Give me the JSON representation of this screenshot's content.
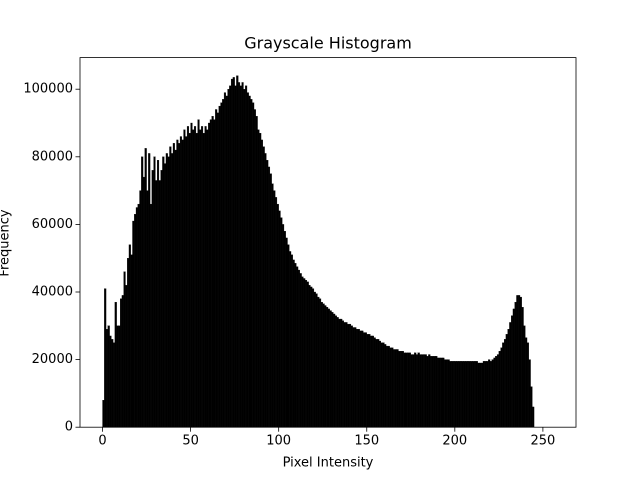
{
  "chart_data": {
    "type": "histogram",
    "title": "Grayscale Histogram",
    "x_label": "Pixel Intensity",
    "y_label": "Frequency",
    "color": "#000000",
    "bins": [
      0,
      1,
      2,
      3,
      4,
      5,
      6,
      7,
      8,
      9,
      10,
      11,
      12,
      13,
      14,
      15,
      16,
      17,
      18,
      19,
      20,
      21,
      22,
      23,
      24,
      25,
      26,
      27,
      28,
      29,
      30,
      31,
      32,
      33,
      34,
      35,
      36,
      37,
      38,
      39,
      40,
      41,
      42,
      43,
      44,
      45,
      46,
      47,
      48,
      49,
      50,
      51,
      52,
      53,
      54,
      55,
      56,
      57,
      58,
      59,
      60,
      61,
      62,
      63,
      64,
      65,
      66,
      67,
      68,
      69,
      70,
      71,
      72,
      73,
      74,
      75,
      76,
      77,
      78,
      79,
      80,
      81,
      82,
      83,
      84,
      85,
      86,
      87,
      88,
      89,
      90,
      91,
      92,
      93,
      94,
      95,
      96,
      97,
      98,
      99,
      100,
      101,
      102,
      103,
      104,
      105,
      106,
      107,
      108,
      109,
      110,
      111,
      112,
      113,
      114,
      115,
      116,
      117,
      118,
      119,
      120,
      121,
      122,
      123,
      124,
      125,
      126,
      127,
      128,
      129,
      130,
      131,
      132,
      133,
      134,
      135,
      136,
      137,
      138,
      139,
      140,
      141,
      142,
      143,
      144,
      145,
      146,
      147,
      148,
      149,
      150,
      151,
      152,
      153,
      154,
      155,
      156,
      157,
      158,
      159,
      160,
      161,
      162,
      163,
      164,
      165,
      166,
      167,
      168,
      169,
      170,
      171,
      172,
      173,
      174,
      175,
      176,
      177,
      178,
      179,
      180,
      181,
      182,
      183,
      184,
      185,
      186,
      187,
      188,
      189,
      190,
      191,
      192,
      193,
      194,
      195,
      196,
      197,
      198,
      199,
      200,
      201,
      202,
      203,
      204,
      205,
      206,
      207,
      208,
      209,
      210,
      211,
      212,
      213,
      214,
      215,
      216,
      217,
      218,
      219,
      220,
      221,
      222,
      223,
      224,
      225,
      226,
      227,
      228,
      229,
      230,
      231,
      232,
      233,
      234,
      235,
      236,
      237,
      238,
      239,
      240,
      241,
      242,
      243,
      244,
      245,
      246,
      247,
      248,
      249,
      250,
      251,
      252,
      253,
      254,
      255,
      256
    ],
    "values": [
      8000,
      41000,
      29000,
      30000,
      27000,
      26000,
      25000,
      37000,
      30000,
      30000,
      38000,
      39000,
      46000,
      42000,
      50000,
      54000,
      51000,
      61000,
      63000,
      65000,
      66000,
      70000,
      80000,
      74000,
      82500,
      70000,
      81000,
      66000,
      76000,
      80000,
      73000,
      79000,
      73000,
      76000,
      80000,
      78000,
      81000,
      80000,
      83000,
      81000,
      84000,
      82000,
      85000,
      84000,
      86000,
      85000,
      88000,
      86000,
      89000,
      87000,
      90000,
      88000,
      89000,
      87000,
      91000,
      88000,
      89000,
      87000,
      89000,
      88000,
      90000,
      91000,
      92000,
      91000,
      94000,
      93000,
      95000,
      96000,
      97000,
      99000,
      98000,
      100000,
      101000,
      103000,
      103500,
      101000,
      104000,
      102000,
      101000,
      102000,
      100000,
      101000,
      99000,
      98000,
      97000,
      96000,
      94000,
      92000,
      88000,
      87000,
      85000,
      83000,
      81000,
      79000,
      77000,
      75000,
      72000,
      70000,
      68000,
      66000,
      64000,
      62000,
      60000,
      58000,
      56000,
      54000,
      52000,
      51000,
      49500,
      48500,
      47500,
      46500,
      45500,
      44500,
      44000,
      43500,
      43000,
      42000,
      41500,
      41000,
      40000,
      39500,
      38500,
      38000,
      37000,
      36500,
      36000,
      35500,
      35000,
      34500,
      34000,
      33500,
      33000,
      32500,
      32000,
      32000,
      31500,
      31000,
      31000,
      30500,
      30500,
      30000,
      29500,
      29500,
      29000,
      29000,
      28500,
      28500,
      28000,
      28000,
      27500,
      27500,
      27000,
      27000,
      26500,
      26000,
      26000,
      25500,
      25000,
      25000,
      24500,
      24000,
      24000,
      23500,
      23500,
      23000,
      23000,
      23000,
      22500,
      22500,
      22500,
      22000,
      22000,
      22000,
      22000,
      21500,
      21500,
      22000,
      21500,
      22000,
      21500,
      21500,
      21500,
      21500,
      21000,
      21500,
      21000,
      21000,
      21000,
      21000,
      20500,
      20500,
      20500,
      20500,
      20000,
      20000,
      20000,
      19500,
      19500,
      19500,
      19500,
      19500,
      19500,
      19500,
      19500,
      19500,
      19500,
      19500,
      19500,
      19500,
      19500,
      19500,
      19500,
      19000,
      19000,
      19000,
      19500,
      19500,
      19500,
      20000,
      19500,
      20000,
      20500,
      21000,
      21500,
      22500,
      23500,
      25000,
      26000,
      27500,
      29000,
      31000,
      33000,
      35000,
      37000,
      39000,
      39000,
      38500,
      35500,
      30000,
      26500,
      25000,
      20000,
      12000,
      6000,
      0,
      0,
      0,
      0,
      0,
      0,
      0,
      0,
      0,
      0,
      0
    ],
    "xlim": [
      -12.8,
      268.8
    ],
    "xticks": [
      0,
      50,
      100,
      150,
      200,
      250
    ],
    "ylim": [
      0,
      109350
    ],
    "yticks": [
      0,
      20000,
      40000,
      60000,
      80000,
      100000
    ]
  }
}
